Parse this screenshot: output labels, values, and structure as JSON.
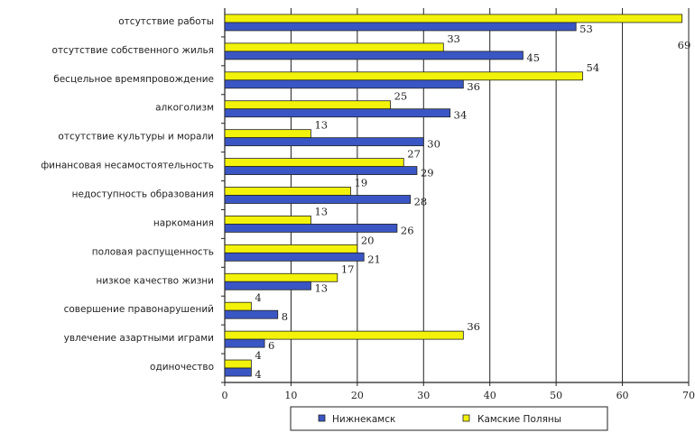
{
  "chart_data": {
    "type": "bar",
    "orientation": "horizontal",
    "title": "",
    "xlabel": "",
    "ylabel": "",
    "xlim": [
      0,
      70
    ],
    "xticks": [
      0,
      10,
      20,
      30,
      40,
      50,
      60,
      70
    ],
    "grid": "vertical",
    "legend_position": "bottom",
    "categories": [
      "отсутствие работы",
      "отсутствие собственного жилья",
      "бесцельное времяпровождение",
      "алкоголизм",
      "отсутствие культуры и морали",
      "финансовая несамостоятельность",
      "недоступность образования",
      "наркомания",
      "половая распущенность",
      "низкое качество жизни",
      "совершение правонарушений",
      "увлечение азартными играми",
      "одиночество"
    ],
    "series": [
      {
        "name": "Нижнекамск",
        "color": "#3a56c4",
        "values": [
          53,
          45,
          36,
          34,
          30,
          29,
          28,
          26,
          21,
          13,
          8,
          6,
          4
        ]
      },
      {
        "name": "Камские Поляны",
        "color": "#f2f20a",
        "values": [
          69,
          33,
          54,
          25,
          13,
          27,
          19,
          13,
          20,
          17,
          4,
          36,
          4
        ]
      }
    ]
  }
}
